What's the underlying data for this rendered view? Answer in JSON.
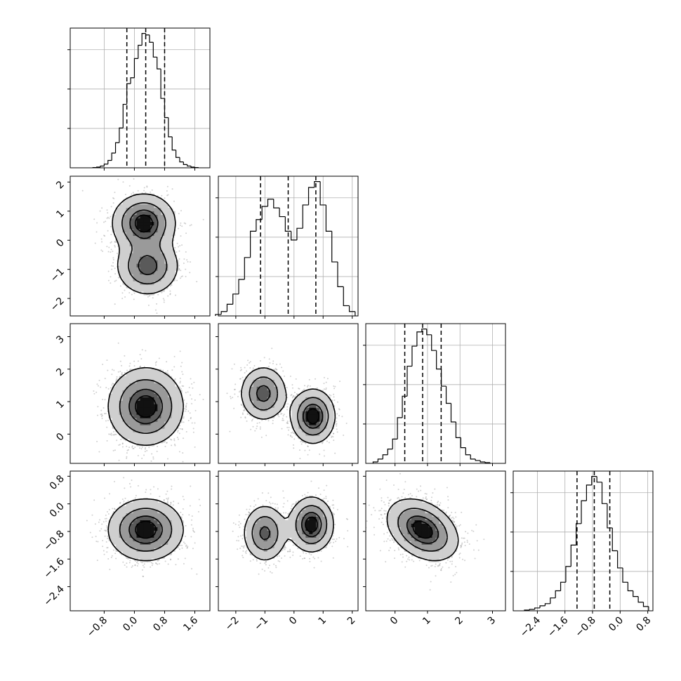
{
  "chart_data": {
    "type": "corner",
    "params": [
      {
        "mean": 0.3,
        "sd": 0.5,
        "lim": [
          -1.7,
          2.0
        ],
        "ticks": [
          -0.8,
          0.0,
          0.8,
          1.6
        ],
        "tick_labels": [
          "−0.8",
          "0.0",
          "0.8",
          "1.6"
        ],
        "quantiles": [
          -0.2,
          0.3,
          0.8
        ]
      },
      {
        "mean": -0.2,
        "sd": 1.0,
        "lim": [
          -2.6,
          2.2
        ],
        "ticks": [
          -2,
          -1,
          0,
          1,
          2
        ],
        "tick_labels": [
          "−2",
          "−1",
          "0",
          "1",
          "2"
        ],
        "quantiles": [
          -1.15,
          -0.2,
          0.75
        ]
      },
      {
        "mean": 0.85,
        "sd": 0.55,
        "lim": [
          -0.9,
          3.4
        ],
        "ticks": [
          0,
          1,
          2,
          3
        ],
        "tick_labels": [
          "0",
          "1",
          "2",
          "3"
        ],
        "quantiles": [
          0.3,
          0.85,
          1.42
        ]
      },
      {
        "mean": -0.75,
        "sd": 0.45,
        "lim": [
          -3.1,
          0.95
        ],
        "ticks": [
          -2.4,
          -1.6,
          -0.8,
          0.0,
          0.8
        ],
        "tick_labels": [
          "−2.4",
          "−1.6",
          "−0.8",
          "0.0",
          "0.8"
        ],
        "quantiles": [
          -1.25,
          -0.75,
          -0.3
        ]
      }
    ],
    "histograms": [
      {
        "param": 0,
        "bins_x": [
          -1.05,
          -0.95,
          -0.85,
          -0.75,
          -0.65,
          -0.55,
          -0.45,
          -0.35,
          -0.25,
          -0.15,
          -0.05,
          0.05,
          0.15,
          0.25,
          0.35,
          0.45,
          0.55,
          0.65,
          0.75,
          0.85,
          0.95,
          1.05,
          1.15,
          1.25,
          1.35,
          1.45,
          1.55,
          1.65
        ],
        "counts": [
          0.2,
          0.5,
          1.2,
          2.5,
          5,
          10,
          17,
          27,
          43,
          57,
          61,
          74,
          83,
          91,
          90,
          85,
          75,
          67,
          47,
          34,
          21,
          12,
          7,
          4,
          2.2,
          1.2,
          0.5,
          0.2
        ]
      },
      {
        "param": 1,
        "bins_x": [
          -2.6,
          -2.4,
          -2.2,
          -2.0,
          -1.8,
          -1.6,
          -1.4,
          -1.2,
          -1.0,
          -0.8,
          -0.6,
          -0.4,
          -0.2,
          0.0,
          0.2,
          0.4,
          0.6,
          0.8,
          1.0,
          1.2,
          1.4,
          1.6,
          1.8,
          2.0
        ],
        "counts": [
          1,
          3,
          8,
          15,
          25,
          40,
          58,
          66,
          75,
          80,
          74,
          68,
          58,
          52,
          60,
          76,
          88,
          92,
          76,
          58,
          37,
          20,
          7,
          3
        ]
      },
      {
        "param": 2,
        "bins_x": [
          -0.6,
          -0.45,
          -0.3,
          -0.15,
          0.0,
          0.15,
          0.3,
          0.45,
          0.6,
          0.75,
          0.9,
          1.05,
          1.2,
          1.35,
          1.5,
          1.65,
          1.8,
          1.95,
          2.1,
          2.25,
          2.4,
          2.55,
          2.7,
          2.85
        ],
        "counts": [
          1,
          3,
          6,
          10,
          17,
          32,
          47,
          68,
          82,
          92,
          94,
          90,
          79,
          66,
          54,
          42,
          29,
          18,
          11,
          6,
          3,
          2,
          1,
          0.5
        ]
      },
      {
        "param": 3,
        "bins_x": [
          -2.7,
          -2.55,
          -2.4,
          -2.25,
          -2.1,
          -1.95,
          -1.8,
          -1.65,
          -1.5,
          -1.35,
          -1.2,
          -1.05,
          -0.9,
          -0.75,
          -0.6,
          -0.45,
          -0.3,
          -0.15,
          0.0,
          0.15,
          0.3,
          0.45,
          0.6,
          0.75
        ],
        "counts": [
          0.5,
          1,
          2,
          3.5,
          5,
          9,
          14,
          20,
          31,
          46,
          61,
          77,
          88,
          94,
          90,
          75,
          58,
          42,
          30,
          20,
          14,
          10,
          6,
          3
        ]
      }
    ],
    "pairs": [
      {
        "x": 0,
        "y": 1,
        "modes": [
          {
            "mx": 0.25,
            "my": 0.6,
            "sx": 0.42,
            "sy": 0.5,
            "w": 1.0
          },
          {
            "mx": 0.35,
            "my": -0.9,
            "sx": 0.42,
            "sy": 0.5,
            "w": 0.8
          }
        ]
      },
      {
        "x": 0,
        "y": 2,
        "modes": [
          {
            "mx": 0.3,
            "my": 0.85,
            "sx": 0.5,
            "sy": 0.6,
            "w": 1.0
          }
        ]
      },
      {
        "x": 1,
        "y": 2,
        "modes": [
          {
            "mx": -1.05,
            "my": 1.25,
            "sx": 0.4,
            "sy": 0.42,
            "w": 0.8
          },
          {
            "mx": 0.65,
            "my": 0.55,
            "sx": 0.38,
            "sy": 0.42,
            "w": 1.0
          }
        ]
      },
      {
        "x": 0,
        "y": 3,
        "modes": [
          {
            "mx": 0.3,
            "my": -0.75,
            "sx": 0.5,
            "sy": 0.45,
            "w": 1.0
          }
        ]
      },
      {
        "x": 1,
        "y": 3,
        "modes": [
          {
            "mx": -1.0,
            "my": -0.85,
            "sx": 0.38,
            "sy": 0.42,
            "w": 0.75
          },
          {
            "mx": 0.6,
            "my": -0.6,
            "sx": 0.38,
            "sy": 0.4,
            "w": 1.0
          }
        ]
      },
      {
        "x": 2,
        "y": 3,
        "modes": [
          {
            "mx": 0.85,
            "my": -0.75,
            "sx": 0.55,
            "sy": 0.45,
            "w": 1.0,
            "rho": -0.35
          }
        ]
      }
    ],
    "contour_levels": [
      0.14,
      0.39,
      0.68,
      0.86
    ],
    "grid": true,
    "xlabel": "",
    "ylabel": "",
    "title": ""
  }
}
